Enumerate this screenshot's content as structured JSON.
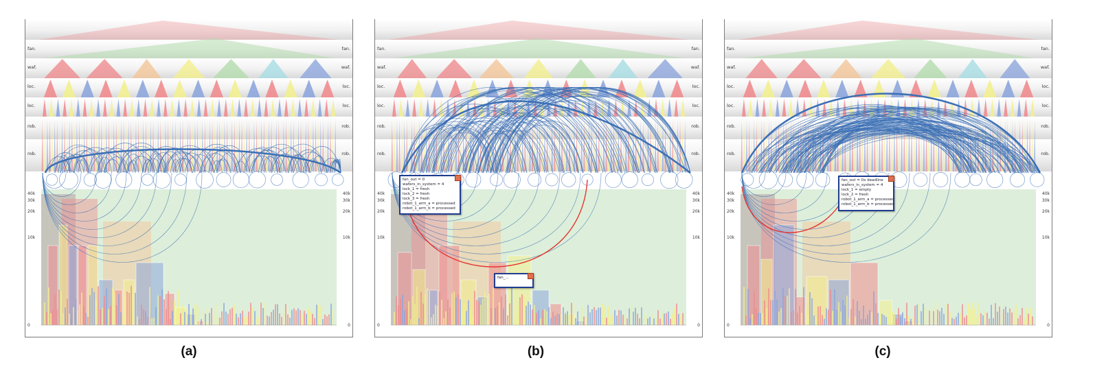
{
  "panels": [
    {
      "id": "a",
      "caption": "(a)",
      "level_labels": [
        "fan.",
        "waf.",
        "loc.",
        "loc.",
        "rob.",
        "rob."
      ],
      "tick_labels": [
        "40k",
        "30k",
        "20k",
        "10k",
        "0"
      ],
      "tooltips": []
    },
    {
      "id": "b",
      "caption": "(b)",
      "level_labels": [
        "fan.",
        "waf.",
        "loc.",
        "loc.",
        "rob.",
        "rob."
      ],
      "tick_labels": [
        "40k",
        "30k",
        "20k",
        "10k",
        "0"
      ],
      "tooltips": [
        {
          "lines": [
            "fan_out = 0",
            "wafers_in_system = 4",
            "lock_1 = fresh",
            "lock_2 = fresh",
            "lock_3 = fresh",
            "robot_1_arm_a = processed",
            "robot_1_arm_b = processed"
          ]
        },
        {
          "lines": [
            "fan_..."
          ]
        }
      ]
    },
    {
      "id": "c",
      "caption": "(c)",
      "level_labels": [
        "fan.",
        "waf.",
        "loc.",
        "loc.",
        "rob.",
        "rob."
      ],
      "tick_labels": [
        "40k",
        "30k",
        "20k",
        "10k",
        "0"
      ],
      "tooltips": [
        {
          "lines": [
            "fan_out = 0x deadline",
            "wafers_in_system = 4",
            "lock_1 = empty",
            "lock_2 = fresh",
            "robot_1_arm_a = processed",
            "robot_1_arm_b = processed"
          ]
        }
      ]
    }
  ],
  "colors": {
    "pink": "#ef8c8f",
    "green": "#b4dcae",
    "orange": "#f3c69a",
    "yellow": "#f2ef8f",
    "blue": "#8da6dc",
    "cyan": "#a8dde3",
    "arc": "#3b6fb5",
    "highlight": "#e3342f"
  },
  "chart_data": [
    {
      "type": "other",
      "title": "",
      "levels": [
        "fan.",
        "waf.",
        "loc.",
        "loc.",
        "rob.",
        "rob."
      ],
      "y_ticks": [
        "0",
        "10k",
        "20k",
        "30k",
        "40k"
      ],
      "ylim": [
        0,
        45000
      ],
      "arc_layout": "flat",
      "highlighted_arcs": 0,
      "tooltip_count": 0
    },
    {
      "type": "other",
      "title": "",
      "levels": [
        "fan.",
        "waf.",
        "loc.",
        "loc.",
        "rob.",
        "rob."
      ],
      "y_ticks": [
        "0",
        "10k",
        "20k",
        "30k",
        "40k"
      ],
      "ylim": [
        0,
        45000
      ],
      "arc_layout": "skewed-left",
      "highlighted_arcs": 1,
      "tooltip_count": 2
    },
    {
      "type": "other",
      "title": "",
      "levels": [
        "fan.",
        "waf.",
        "loc.",
        "loc.",
        "rob.",
        "rob."
      ],
      "y_ticks": [
        "0",
        "10k",
        "20k",
        "30k",
        "40k"
      ],
      "ylim": [
        0,
        45000
      ],
      "arc_layout": "dome",
      "highlighted_arcs": 1,
      "tooltip_count": 1
    }
  ]
}
